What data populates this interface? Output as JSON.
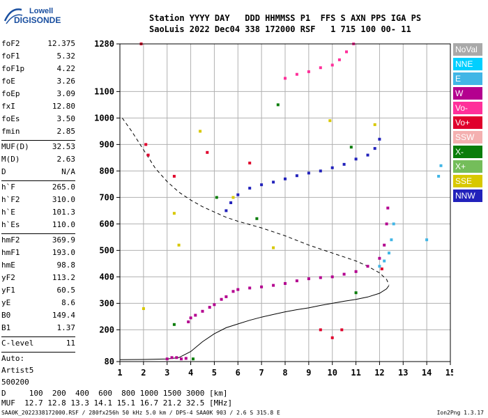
{
  "logo": {
    "line1": "Lowell",
    "line2": "DIGISONDE"
  },
  "header": {
    "line1": "Station YYYY DAY   DDD HHMMSS P1  FFS S AXN PPS IGA PS",
    "line2": "SaoLuis 2022 Dec04 338 172000 RSF   1 715 100 00- 11"
  },
  "params": [
    {
      "k": "foF2",
      "v": "12.375"
    },
    {
      "k": "foF1",
      "v": "5.32"
    },
    {
      "k": "foF1p",
      "v": "4.22"
    },
    {
      "k": "foE",
      "v": "3.26"
    },
    {
      "k": "foEp",
      "v": "3.09"
    },
    {
      "k": "fxI",
      "v": "12.80"
    },
    {
      "k": "foEs",
      "v": "3.50"
    },
    {
      "k": "fmin",
      "v": "2.85"
    },
    {
      "sep": true
    },
    {
      "k": "MUF(D)",
      "v": "32.53"
    },
    {
      "k": "M(D)",
      "v": "2.63"
    },
    {
      "k": "D",
      "v": "N/A"
    },
    {
      "sep": true
    },
    {
      "k": "h`F",
      "v": "265.0"
    },
    {
      "k": "h`F2",
      "v": "310.0"
    },
    {
      "k": "h`E",
      "v": "101.3"
    },
    {
      "k": "h`Es",
      "v": "110.0"
    },
    {
      "sep": true
    },
    {
      "k": "hmF2",
      "v": "369.9"
    },
    {
      "k": "hmF1",
      "v": "193.0"
    },
    {
      "k": "hmE",
      "v": "98.8"
    },
    {
      "k": "yF2",
      "v": "113.2"
    },
    {
      "k": "yF1",
      "v": "60.5"
    },
    {
      "k": "yE",
      "v": "8.6"
    },
    {
      "k": "B0",
      "v": "149.4"
    },
    {
      "k": "B1",
      "v": "1.37"
    },
    {
      "sep": true
    },
    {
      "k": "C-level",
      "v": "11"
    },
    {
      "sep": true
    },
    {
      "t": "Auto:"
    },
    {
      "t": "Artist5"
    },
    {
      "t": "500200"
    }
  ],
  "legend": [
    {
      "label": "NoVal",
      "color": "#a9a9a9"
    },
    {
      "label": "NNE",
      "color": "#00cfff"
    },
    {
      "label": "E",
      "color": "#41b6e6"
    },
    {
      "label": "W",
      "color": "#b4008f"
    },
    {
      "label": "Vo-",
      "color": "#ff2f9a"
    },
    {
      "label": "Vo+",
      "color": "#e0002c"
    },
    {
      "label": "SSW",
      "color": "#f4b0b0"
    },
    {
      "label": "X-",
      "color": "#0a7d0a"
    },
    {
      "label": "X+",
      "color": "#74bd5a"
    },
    {
      "label": "SSE",
      "color": "#d8c800"
    },
    {
      "label": "NNW",
      "color": "#2222bb"
    }
  ],
  "chart_data": {
    "type": "scatter",
    "xlim": [
      1,
      15
    ],
    "ylim": [
      80,
      1280
    ],
    "x_ticks": [
      "1",
      "2",
      "3",
      "4",
      "5",
      "6",
      "7",
      "8",
      "9",
      "10",
      "11",
      "12",
      "13",
      "14",
      "15"
    ],
    "y_ticks": [
      "80",
      "200",
      "300",
      "400",
      "500",
      "600",
      "700",
      "800",
      "900",
      "1000",
      "1100",
      "1280"
    ],
    "grid": true,
    "series": [
      {
        "color": "#b4008f",
        "points": [
          [
            3.0,
            90
          ],
          [
            3.2,
            95
          ],
          [
            3.4,
            95
          ],
          [
            3.6,
            90
          ],
          [
            3.8,
            92
          ],
          [
            3.9,
            230
          ],
          [
            4.0,
            245
          ],
          [
            4.2,
            255
          ],
          [
            4.5,
            270
          ],
          [
            4.8,
            285
          ],
          [
            5.0,
            295
          ],
          [
            5.3,
            315
          ],
          [
            5.5,
            325
          ],
          [
            5.8,
            345
          ],
          [
            6.0,
            352
          ],
          [
            6.5,
            358
          ],
          [
            7.0,
            362
          ],
          [
            7.5,
            368
          ],
          [
            8.0,
            375
          ],
          [
            8.5,
            385
          ],
          [
            9.0,
            393
          ],
          [
            9.5,
            397
          ],
          [
            10.0,
            400
          ],
          [
            10.5,
            410
          ],
          [
            11.0,
            420
          ],
          [
            11.5,
            440
          ],
          [
            12.0,
            470
          ],
          [
            12.2,
            520
          ],
          [
            12.3,
            600
          ],
          [
            12.35,
            660
          ]
        ]
      },
      {
        "color": "#2222bb",
        "points": [
          [
            5.5,
            650
          ],
          [
            5.7,
            680
          ],
          [
            6.0,
            710
          ],
          [
            6.5,
            735
          ],
          [
            7.0,
            748
          ],
          [
            7.5,
            758
          ],
          [
            8.0,
            770
          ],
          [
            8.5,
            782
          ],
          [
            9.0,
            792
          ],
          [
            9.5,
            800
          ],
          [
            10.0,
            812
          ],
          [
            10.5,
            825
          ],
          [
            11.0,
            845
          ],
          [
            11.5,
            860
          ],
          [
            11.8,
            885
          ],
          [
            12.0,
            920
          ]
        ]
      },
      {
        "color": "#ff2f9a",
        "points": [
          [
            8.0,
            1150
          ],
          [
            8.5,
            1165
          ],
          [
            9.0,
            1175
          ],
          [
            9.5,
            1190
          ],
          [
            10.0,
            1200
          ],
          [
            10.3,
            1220
          ],
          [
            10.6,
            1250
          ],
          [
            10.9,
            1280
          ]
        ]
      },
      {
        "color": "#41b6e6",
        "points": [
          [
            12.0,
            440
          ],
          [
            12.2,
            460
          ],
          [
            12.4,
            490
          ],
          [
            12.5,
            540
          ],
          [
            12.6,
            600
          ],
          [
            14.0,
            540
          ],
          [
            14.5,
            780
          ],
          [
            14.6,
            820
          ]
        ]
      },
      {
        "color": "#d8c800",
        "points": [
          [
            2.0,
            280
          ],
          [
            3.3,
            640
          ],
          [
            3.5,
            520
          ],
          [
            4.4,
            950
          ],
          [
            5.8,
            700
          ],
          [
            7.5,
            510
          ],
          [
            9.9,
            990
          ],
          [
            11.8,
            975
          ]
        ]
      },
      {
        "color": "#e0002c",
        "points": [
          [
            1.9,
            1280
          ],
          [
            2.1,
            900
          ],
          [
            2.2,
            860
          ],
          [
            3.3,
            780
          ],
          [
            4.7,
            870
          ],
          [
            6.5,
            830
          ],
          [
            9.5,
            200
          ],
          [
            10.0,
            170
          ],
          [
            10.4,
            200
          ],
          [
            12.1,
            430
          ]
        ]
      },
      {
        "color": "#0a7d0a",
        "points": [
          [
            3.3,
            220
          ],
          [
            4.1,
            90
          ],
          [
            5.1,
            700
          ],
          [
            6.8,
            620
          ],
          [
            7.7,
            1050
          ],
          [
            10.8,
            890
          ],
          [
            11.0,
            340
          ]
        ]
      }
    ],
    "curves": [
      {
        "style": "dashed",
        "points": [
          [
            1.1,
            1000
          ],
          [
            1.5,
            950
          ],
          [
            2.0,
            880
          ],
          [
            2.5,
            810
          ],
          [
            3.0,
            760
          ],
          [
            3.5,
            720
          ],
          [
            4.0,
            690
          ],
          [
            4.5,
            665
          ],
          [
            5.0,
            645
          ],
          [
            5.5,
            625
          ],
          [
            6.0,
            610
          ],
          [
            7.0,
            585
          ],
          [
            8.0,
            555
          ],
          [
            9.0,
            520
          ],
          [
            10.0,
            490
          ],
          [
            11.0,
            460
          ],
          [
            11.5,
            440
          ],
          [
            12.0,
            415
          ],
          [
            12.3,
            390
          ],
          [
            12.4,
            370
          ]
        ]
      },
      {
        "style": "solid",
        "points": [
          [
            1.0,
            87
          ],
          [
            2.0,
            88
          ],
          [
            3.0,
            90
          ],
          [
            3.5,
            95
          ],
          [
            4.0,
            118
          ],
          [
            4.5,
            155
          ],
          [
            5.0,
            185
          ],
          [
            5.5,
            208
          ],
          [
            6.0,
            222
          ],
          [
            6.5,
            236
          ],
          [
            7.0,
            248
          ],
          [
            7.5,
            258
          ],
          [
            8.0,
            268
          ],
          [
            8.5,
            276
          ],
          [
            9.0,
            283
          ],
          [
            9.5,
            292
          ],
          [
            10.0,
            300
          ],
          [
            10.5,
            308
          ],
          [
            11.0,
            315
          ],
          [
            11.5,
            324
          ],
          [
            12.0,
            338
          ],
          [
            12.3,
            355
          ],
          [
            12.4,
            368
          ]
        ]
      }
    ]
  },
  "footer": {
    "line1": "D     100  200  400  600  800 1000 1500 3000 [km]",
    "line2": "MUF  12.7 12.8 13.3 14.1 15.1 16.7 21.2 32.5 [MHz]",
    "file": "SAA0K_2022338172000.RSF / 280fx256h 50 kHz 5.0 km / DPS-4 SAA0K 903 / 2.6 S 315.8 E",
    "version": "Ion2Png 1.3.17"
  }
}
